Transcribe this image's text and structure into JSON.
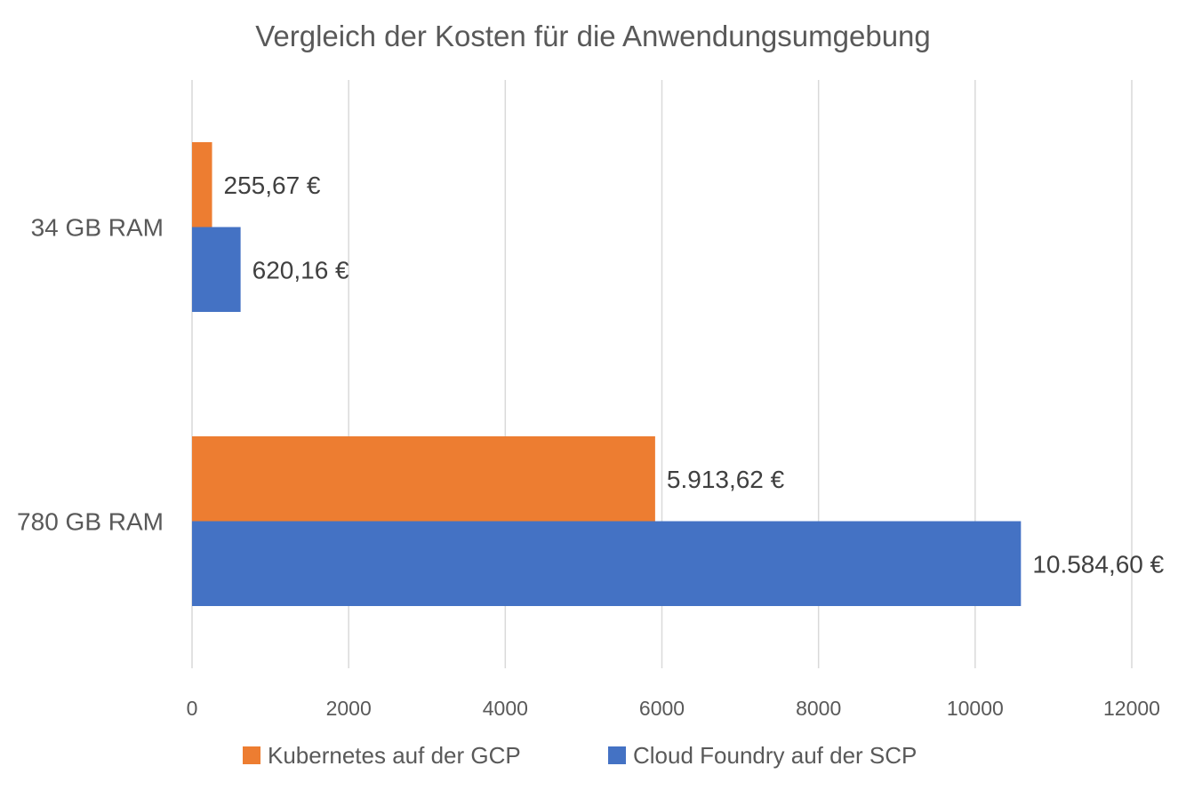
{
  "chart_data": {
    "type": "bar",
    "orientation": "horizontal",
    "title": "Vergleich der Kosten für die Anwendungsumgebung",
    "categories": [
      "34 GB RAM",
      "780 GB RAM"
    ],
    "series": [
      {
        "name": "Kubernetes auf der GCP",
        "color": "#ED7D31",
        "values": [
          255.67,
          5913.62
        ],
        "labels": [
          "255,67 €",
          "5.913,62 €"
        ]
      },
      {
        "name": "Cloud Foundry auf der SCP",
        "color": "#4472C4",
        "values": [
          620.16,
          10584.6
        ],
        "labels": [
          "620,16 €",
          "10.584,60 €"
        ]
      }
    ],
    "xlim": [
      0,
      12000
    ],
    "xticks": [
      0,
      2000,
      4000,
      6000,
      8000,
      10000,
      12000
    ],
    "tick_labels": [
      "0",
      "2000",
      "4000",
      "6000",
      "8000",
      "10000",
      "12000"
    ],
    "grid": true,
    "legend_position": "bottom"
  }
}
